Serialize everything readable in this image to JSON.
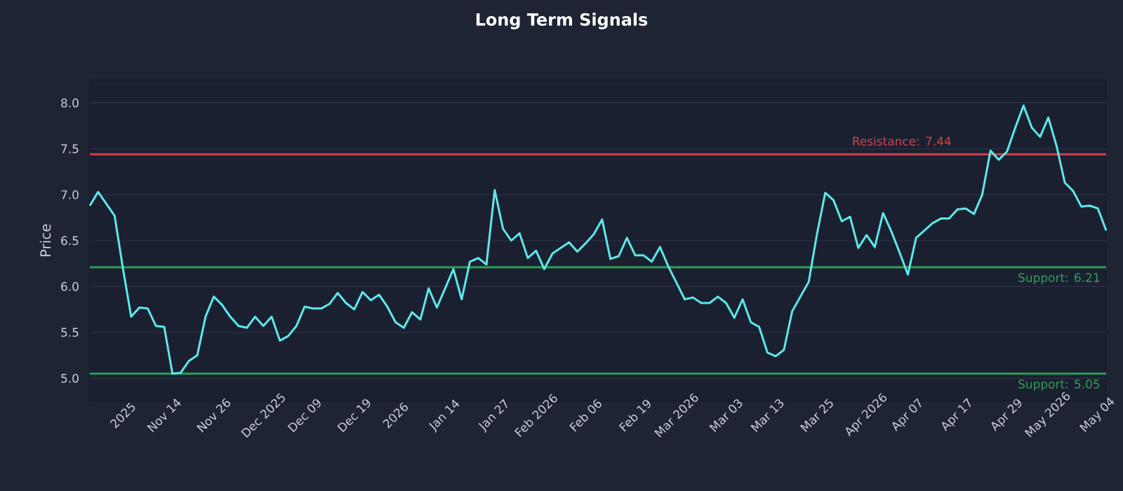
{
  "chart_data": {
    "type": "line",
    "title": "Long Term Signals",
    "ylabel": "Price",
    "categories": [
      null,
      null,
      null,
      null,
      "2025",
      null,
      null,
      null,
      null,
      "Nov 14",
      null,
      null,
      null,
      null,
      null,
      "Nov 26",
      null,
      null,
      null,
      null,
      null,
      "Dec 2025",
      null,
      null,
      null,
      null,
      "Dec 09",
      null,
      null,
      null,
      null,
      null,
      "Dec 19",
      null,
      null,
      null,
      null,
      "2026",
      null,
      null,
      null,
      null,
      null,
      "Jan 14",
      null,
      null,
      null,
      null,
      null,
      "Jan 27",
      null,
      null,
      null,
      null,
      "Feb 2026",
      null,
      null,
      null,
      null,
      null,
      "Feb 06",
      null,
      null,
      null,
      null,
      null,
      "Feb 19",
      null,
      null,
      null,
      null,
      "Mar 2026",
      null,
      null,
      null,
      null,
      null,
      "Mar 03",
      null,
      null,
      null,
      null,
      "Mar 13",
      null,
      null,
      null,
      null,
      null,
      "Mar 25",
      null,
      null,
      null,
      null,
      null,
      "Apr 2026",
      null,
      null,
      null,
      null,
      "Apr 07",
      null,
      null,
      null,
      null,
      null,
      "Apr 17",
      null,
      null,
      null,
      null,
      null,
      "Apr 29",
      null,
      null,
      null,
      null,
      "May 2026",
      null,
      null,
      null,
      null,
      null,
      "May 04",
      null
    ],
    "series": [
      {
        "color": "#5ce8ec",
        "values": [
          6.88,
          7.03,
          6.9,
          6.77,
          6.2,
          5.67,
          5.77,
          5.76,
          5.57,
          5.56,
          5.05,
          5.06,
          5.19,
          5.25,
          5.67,
          5.89,
          5.8,
          5.67,
          5.57,
          5.55,
          5.67,
          5.57,
          5.67,
          5.41,
          5.46,
          5.57,
          5.78,
          5.76,
          5.76,
          5.81,
          5.93,
          5.82,
          5.75,
          5.94,
          5.85,
          5.91,
          5.78,
          5.61,
          5.55,
          5.72,
          5.64,
          5.98,
          5.77,
          5.98,
          6.19,
          5.86,
          6.27,
          6.31,
          6.24,
          7.05,
          6.63,
          6.5,
          6.58,
          6.31,
          6.39,
          6.19,
          6.36,
          6.42,
          6.48,
          6.38,
          6.47,
          6.57,
          6.73,
          6.3,
          6.33,
          6.53,
          6.34,
          6.34,
          6.27,
          6.43,
          6.22,
          6.04,
          5.86,
          5.88,
          5.82,
          5.82,
          5.89,
          5.82,
          5.66,
          5.86,
          5.61,
          5.56,
          5.28,
          5.24,
          5.31,
          5.73,
          5.89,
          6.05,
          6.57,
          7.02,
          6.94,
          6.71,
          6.76,
          6.42,
          6.56,
          6.43,
          6.8,
          6.6,
          6.37,
          6.13,
          6.53,
          6.61,
          6.69,
          6.74,
          6.74,
          6.84,
          6.85,
          6.79,
          7.0,
          7.48,
          7.38,
          7.47,
          7.73,
          7.97,
          7.73,
          7.63,
          7.84,
          7.53,
          7.13,
          7.04,
          6.87,
          6.88,
          6.85,
          6.61
        ]
      }
    ],
    "ylim": [
      4.75,
      8.25
    ],
    "yticks": [
      {
        "value": 5,
        "label": "5.0"
      },
      {
        "value": 5.5,
        "label": "5.5"
      },
      {
        "value": 6,
        "label": "6.0"
      },
      {
        "value": 6.5,
        "label": "6.5"
      },
      {
        "value": 7,
        "label": "7.0"
      },
      {
        "value": 7.5,
        "label": "7.5"
      },
      {
        "value": 8,
        "label": "8.0"
      }
    ],
    "grid": "y",
    "marker": "none",
    "line_style": "solid",
    "ref_lines": [
      {
        "axis": "y",
        "value": 7.44,
        "label": "Resistance: 7.44",
        "color": "#d0424e"
      },
      {
        "axis": "y",
        "value": 6.21,
        "label": "Support: 6.21",
        "color": "#2e9e58"
      },
      {
        "axis": "y",
        "value": 5.05,
        "label": "Support: 5.05",
        "color": "#2e9e58"
      }
    ]
  }
}
